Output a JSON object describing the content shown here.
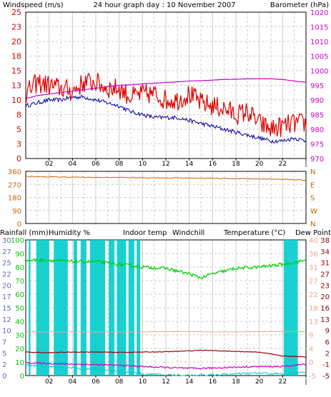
{
  "title": "24 hour graph day : 10 November 2007",
  "colors": {
    "wind": "#dd0000",
    "windAvg": "#000099",
    "baro": "#cc00cc",
    "dir": "#cc6600",
    "rain": "#6666cc",
    "humidity": "#00cc00",
    "indoor": "#e8a98a",
    "windchill": "#00cccc",
    "temp": "#990000",
    "dew": "#cc00cc",
    "grid": "#cccccc",
    "axis": "#000000"
  },
  "x_ticks": [
    "02",
    "04",
    "06",
    "08",
    "10",
    "12",
    "14",
    "16",
    "18",
    "20",
    "22",
    "|"
  ],
  "chart_data": [
    {
      "type": "line",
      "title": "24 hour graph day : 10 November 2007",
      "left_axis": {
        "label": "Windspeed (m/s)",
        "ticks": [
          "0",
          "3",
          "5",
          "8",
          "10",
          "13",
          "15",
          "18",
          "20",
          "23",
          "25"
        ],
        "range": [
          0,
          25
        ]
      },
      "right_axis": {
        "label": "Barometer (hPa)",
        "ticks": [
          "970",
          "975",
          "980",
          "985",
          "990",
          "995",
          "1000",
          "1005",
          "1010",
          "1015",
          "1020"
        ],
        "range": [
          970,
          1020
        ]
      },
      "x_hours": [
        0,
        1,
        2,
        3,
        4,
        5,
        6,
        7,
        8,
        9,
        10,
        11,
        12,
        13,
        14,
        15,
        16,
        17,
        18,
        19,
        20,
        21,
        22,
        23,
        24
      ],
      "series": [
        {
          "name": "Windspeed (m/s)",
          "axis": "left",
          "values": [
            11,
            13,
            12.5,
            12,
            11.5,
            13,
            13,
            12,
            12,
            10.5,
            11,
            11,
            10,
            10,
            11,
            9.5,
            9,
            8.5,
            7.5,
            8,
            6,
            5,
            5.5,
            6,
            6
          ]
        },
        {
          "name": "",
          "axis": "left",
          "values": [
            9,
            9.5,
            10,
            10,
            10.5,
            10.5,
            10,
            9.5,
            9,
            8,
            7.5,
            7,
            7,
            7,
            6.5,
            6,
            5.5,
            5,
            4.5,
            4,
            3.5,
            3,
            3,
            3.5,
            3
          ]
        },
        {
          "name": "Barometer (hPa)",
          "axis": "right",
          "values": [
            990.5,
            991.5,
            992,
            992.5,
            993,
            993.5,
            994,
            994.5,
            995,
            995.2,
            995.5,
            995.7,
            996,
            996.2,
            996.5,
            996.6,
            996.8,
            997,
            997.1,
            997.2,
            997.3,
            997.2,
            997,
            996.5,
            996
          ]
        }
      ]
    },
    {
      "type": "line",
      "left_axis": {
        "ticks": [
          "0",
          "90",
          "180",
          "270",
          "360"
        ],
        "range": [
          0,
          360
        ]
      },
      "right_axis": {
        "ticks": [
          "N",
          "W",
          "S",
          "E",
          "N"
        ]
      },
      "x_hours": [
        0,
        2,
        4,
        6,
        8,
        10,
        12,
        14,
        16,
        18,
        20,
        22,
        24
      ],
      "series": [
        {
          "name": "",
          "values": [
            325,
            322,
            320,
            318,
            318,
            316,
            315,
            314,
            312,
            310,
            308,
            305,
            300
          ]
        }
      ]
    },
    {
      "type": "line",
      "axis_labels": [
        "Rainfall (mm)",
        "Humidity %",
        "Indoor temp",
        "Windchill",
        "Temperature (°C)",
        "Dew Point"
      ],
      "rain_axis": {
        "ticks": [
          "0",
          "2",
          "5",
          "7",
          "10",
          "12",
          "15",
          "17",
          "20",
          "22",
          "25",
          "27",
          "30"
        ],
        "range": [
          0,
          30
        ]
      },
      "humidity_axis": {
        "ticks": [
          "0",
          "10",
          "20",
          "30",
          "40",
          "50",
          "60",
          "70",
          "80",
          "90",
          "100"
        ],
        "range": [
          0,
          100
        ]
      },
      "temp_axis_left": {
        "ticks": [
          "-5",
          "0",
          "4",
          "9",
          "13",
          "18",
          "22",
          "27",
          "31",
          "36",
          "40"
        ],
        "range": [
          -5,
          40
        ]
      },
      "temp_axis_right": {
        "ticks": [
          "-5",
          "-1",
          "2",
          "6",
          "9",
          "13",
          "16",
          "20",
          "23",
          "27",
          "31",
          "34",
          "38"
        ],
        "range": [
          -5,
          38
        ]
      },
      "x_hours": [
        0,
        2,
        4,
        6,
        8,
        10,
        12,
        14,
        15,
        16,
        18,
        20,
        22,
        24
      ],
      "series": [
        {
          "name": "Humidity %",
          "values": [
            85,
            85,
            84,
            84,
            82,
            80,
            79,
            75,
            72,
            75,
            79,
            80,
            82,
            85
          ]
        },
        {
          "name": "Indoor temp",
          "values": [
            9.5,
            9.5,
            9.5,
            9.5,
            9.5,
            9.5,
            9.6,
            9.6,
            9.6,
            9.5,
            9.5,
            9.6,
            9.6,
            9.6
          ]
        },
        {
          "name": "Temperature (°C)",
          "values": [
            2.8,
            2.6,
            2.8,
            2.8,
            2.7,
            2.8,
            2.9,
            3.2,
            3.4,
            3.3,
            3.0,
            2.8,
            1.5,
            1.2
          ]
        },
        {
          "name": "Dew Point",
          "values": [
            -0.8,
            -1.0,
            -1.2,
            -1.4,
            -1.6,
            -2.0,
            -2.3,
            -2.6,
            -2.6,
            -2.5,
            -2.2,
            -2.0,
            -2.0,
            -1.2
          ]
        },
        {
          "name": "Windchill",
          "values": [
            -1.5,
            -2.0,
            -2.5,
            -3.0,
            -3.5,
            -4.5,
            -4.8,
            -5.0,
            -4.8,
            -4.8,
            -4.5,
            -4.2,
            -4.5,
            -4.0
          ]
        }
      ],
      "rain_bars_hours": [
        [
          0.25,
          0.4
        ],
        [
          0.9,
          2.0
        ],
        [
          2.4,
          3.6
        ],
        [
          4.1,
          4.4
        ],
        [
          4.7,
          5.2
        ],
        [
          5.5,
          6.8
        ],
        [
          7.1,
          7.6
        ],
        [
          7.8,
          8.6
        ],
        [
          8.8,
          9.3
        ],
        [
          9.5,
          9.8
        ],
        [
          22.1,
          23.3
        ]
      ]
    }
  ]
}
